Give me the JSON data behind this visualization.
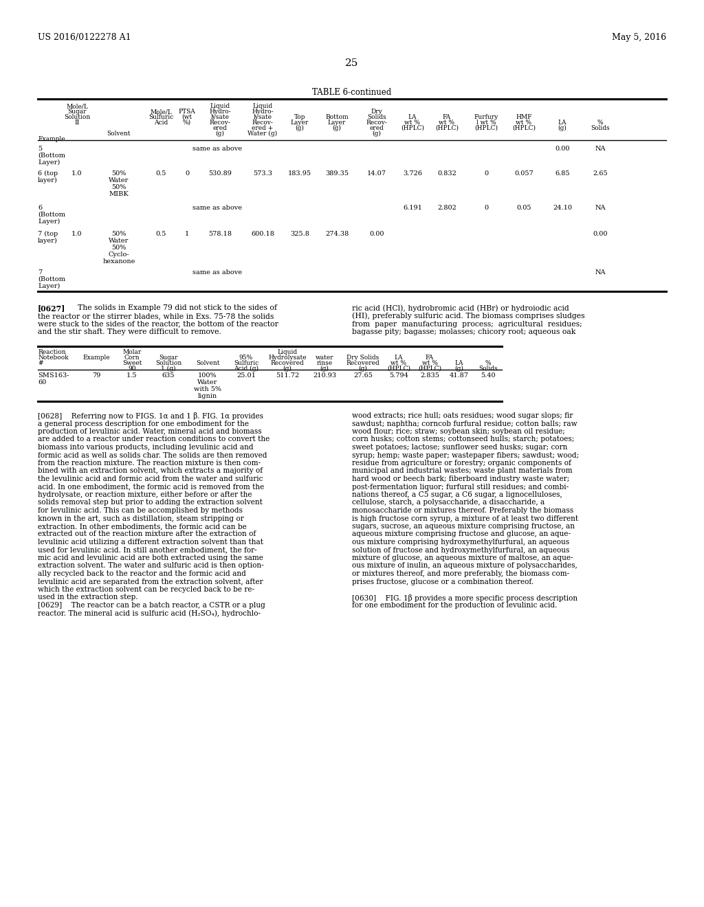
{
  "bg_color": "#ffffff",
  "page_number": "25",
  "patent_left": "US 2016/0122278 A1",
  "patent_right": "May 5, 2016",
  "table1_title": "TABLE 6-continued",
  "para627_label": "[0627]",
  "para628_label": "[0628]",
  "para629_label": "[0629]",
  "para630_label": "[0630]"
}
